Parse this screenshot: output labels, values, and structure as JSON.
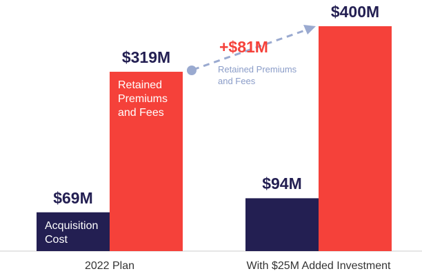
{
  "chart_data": {
    "type": "bar",
    "categories": [
      "2022 Plan",
      "With $25M Added Investment"
    ],
    "series": [
      {
        "name": "Acquisition Cost",
        "color": "#231f52",
        "values": [
          69,
          94
        ],
        "value_labels": [
          "$69M",
          "$94M"
        ]
      },
      {
        "name": "Retained Premiums and Fees",
        "color": "#f5413a",
        "values": [
          319,
          400
        ],
        "value_labels": [
          "$319M",
          "$400M"
        ]
      }
    ],
    "ylim": [
      0,
      400
    ],
    "annotation": {
      "text": "+$81M",
      "note": "Retained Premiums and Fees"
    }
  }
}
